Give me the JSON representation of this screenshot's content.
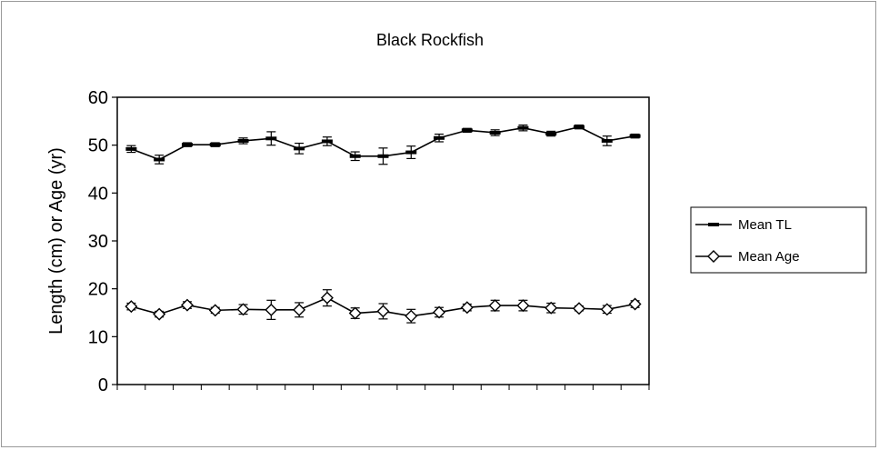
{
  "chart_data": {
    "type": "line",
    "title": "Black Rockfish",
    "xlabel": "",
    "ylabel": "Length (cm) or Age (yr)",
    "ylim": [
      0,
      60
    ],
    "yticks": [
      0,
      10,
      20,
      30,
      40,
      50,
      60
    ],
    "grid": false,
    "legend_position": "right",
    "x": [
      1,
      2,
      3,
      4,
      5,
      6,
      7,
      8,
      9,
      10,
      11,
      12,
      13,
      14,
      15,
      16,
      17,
      18,
      19
    ],
    "series": [
      {
        "name": "Mean TL",
        "marker": "dash",
        "color": "#000000",
        "values": [
          49.2,
          47.0,
          50.1,
          50.1,
          50.9,
          51.4,
          49.3,
          50.8,
          47.7,
          47.7,
          48.5,
          51.5,
          53.1,
          52.6,
          53.6,
          52.4,
          53.8,
          50.9,
          51.9
        ],
        "errors": [
          0.7,
          0.9,
          0.4,
          0.4,
          0.6,
          1.4,
          1.1,
          0.9,
          0.9,
          1.7,
          1.3,
          0.8,
          0.4,
          0.6,
          0.6,
          0.5,
          0.4,
          1.0,
          0.4
        ]
      },
      {
        "name": "Mean Age",
        "marker": "diamond",
        "color": "#000000",
        "values": [
          16.3,
          14.7,
          16.6,
          15.5,
          15.7,
          15.6,
          15.6,
          18.1,
          14.9,
          15.3,
          14.3,
          15.1,
          16.1,
          16.5,
          16.5,
          16.0,
          15.9,
          15.7,
          16.8
        ],
        "errors": [
          0.7,
          0.6,
          0.7,
          0.6,
          1.0,
          2.0,
          1.5,
          1.7,
          1.1,
          1.6,
          1.4,
          1.0,
          0.7,
          1.1,
          1.1,
          1.0,
          0.5,
          0.8,
          0.7
        ]
      }
    ]
  }
}
